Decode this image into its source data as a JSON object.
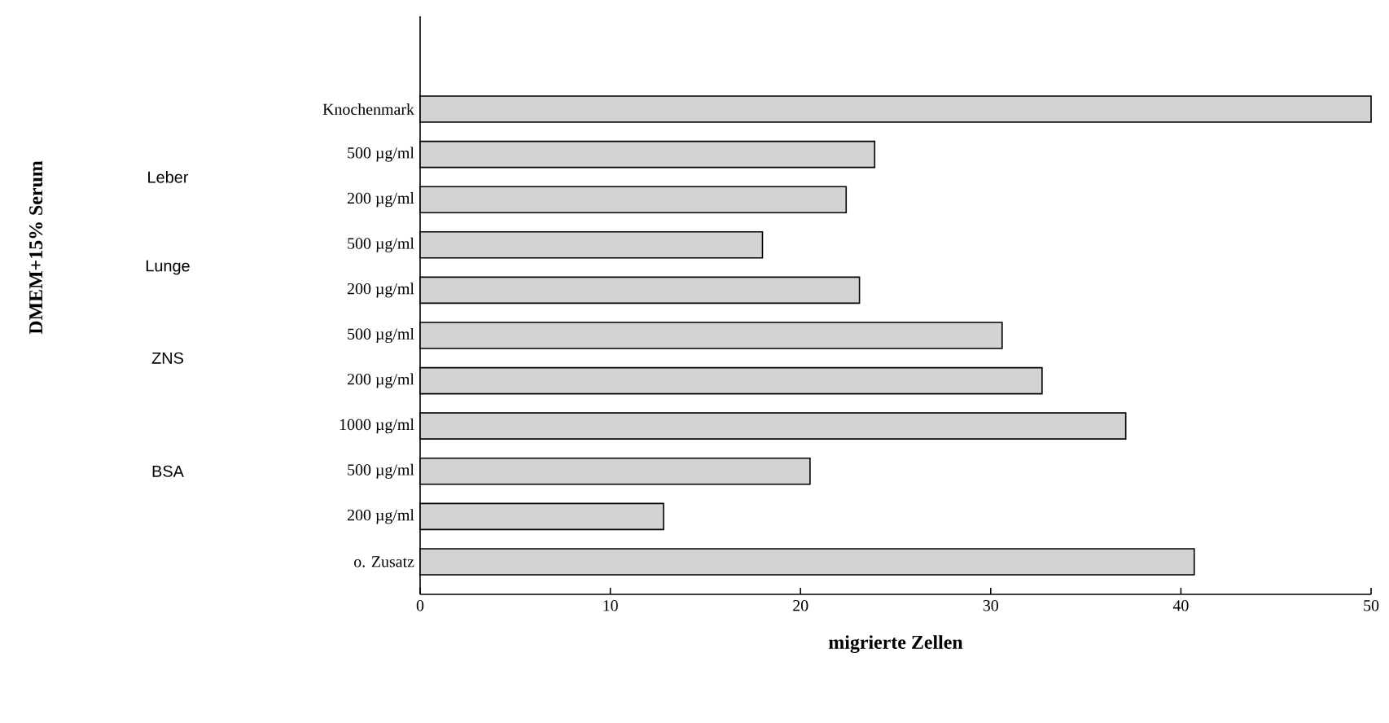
{
  "chart_data": {
    "type": "bar",
    "orientation": "horizontal",
    "categories": [
      "Knochenmark",
      "500 µg/ml",
      "200 µg/ml",
      "500 µg/ml",
      "200 µg/ml",
      "500 µg/ml",
      "200 µg/ml",
      "1000 µg/ml",
      "500 µg/ml",
      "200 µg/ml",
      "o. Zusatz"
    ],
    "values": [
      50,
      23.9,
      22.4,
      18.0,
      23.1,
      30.6,
      32.7,
      37.1,
      20.5,
      12.8,
      40.7
    ],
    "color": "#d3d3d3",
    "xlim": [
      0,
      50
    ],
    "xticks": [
      0,
      10,
      20,
      30,
      40,
      50
    ],
    "xlabel": "migrierte Zellen",
    "annotations": [
      "Leber",
      "Lunge",
      "ZNS",
      "BSA",
      "DMEM+15% Serum"
    ],
    "grid": false
  }
}
